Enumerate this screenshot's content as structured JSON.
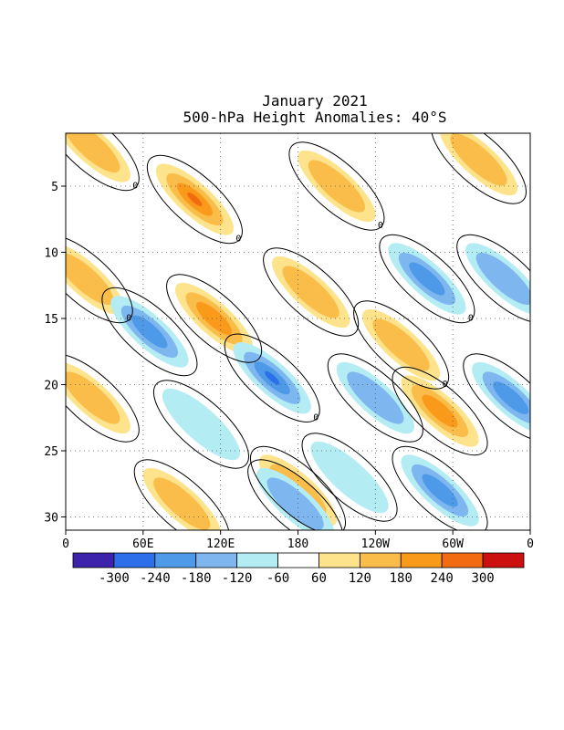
{
  "chart_data": {
    "type": "heatmap",
    "title": "January 2021",
    "subtitle": "500-hPa Height Anomalies: 40°S",
    "x_ticks": [
      "0",
      "60E",
      "120E",
      "180",
      "120W",
      "60W",
      "0"
    ],
    "y_ticks": [
      "5",
      "10",
      "15",
      "20",
      "25",
      "30"
    ],
    "y_range": [
      1,
      31
    ],
    "grid": "dotted",
    "colorbar_labels": [
      "-300",
      "-240",
      "-180",
      "-120",
      "-60",
      "60",
      "120",
      "180",
      "240",
      "300"
    ],
    "colorbar_colors": [
      "#3d22ab",
      "#2d6fe8",
      "#4f9ae8",
      "#7eb7f0",
      "#b4ecf4",
      "#ffffff",
      "#fde38b",
      "#fbbd49",
      "#f99a1a",
      "#f26b10",
      "#cc1010"
    ],
    "contour_label": "0",
    "anomaly_features": [
      {
        "sign": "positive",
        "peak": 240,
        "lon": 100,
        "day": 6
      },
      {
        "sign": "positive",
        "peak": 180,
        "lon": 115,
        "day": 15
      },
      {
        "sign": "positive",
        "peak": 120,
        "lon": 15,
        "day": 12
      },
      {
        "sign": "positive",
        "peak": 120,
        "lon": 190,
        "day": 13
      },
      {
        "sign": "positive",
        "peak": 120,
        "lon": 210,
        "day": 5
      },
      {
        "sign": "positive",
        "peak": 180,
        "lon": 290,
        "day": 22
      },
      {
        "sign": "positive",
        "peak": 120,
        "lon": 260,
        "day": 17
      },
      {
        "sign": "positive",
        "peak": 120,
        "lon": 320,
        "day": 3
      },
      {
        "sign": "positive",
        "peak": 120,
        "lon": 20,
        "day": 2
      },
      {
        "sign": "positive",
        "peak": 120,
        "lon": 180,
        "day": 28
      },
      {
        "sign": "positive",
        "peak": 120,
        "lon": 90,
        "day": 29
      },
      {
        "sign": "positive",
        "peak": 120,
        "lon": 20,
        "day": 21
      },
      {
        "sign": "negative",
        "peak": -240,
        "lon": 160,
        "day": 19.5
      },
      {
        "sign": "negative",
        "peak": -180,
        "lon": 65,
        "day": 16
      },
      {
        "sign": "negative",
        "peak": -180,
        "lon": 280,
        "day": 12
      },
      {
        "sign": "negative",
        "peak": -180,
        "lon": 290,
        "day": 28
      },
      {
        "sign": "negative",
        "peak": -180,
        "lon": 345,
        "day": 21
      },
      {
        "sign": "negative",
        "peak": -120,
        "lon": 240,
        "day": 21
      },
      {
        "sign": "negative",
        "peak": -120,
        "lon": 340,
        "day": 12
      },
      {
        "sign": "negative",
        "peak": -60,
        "lon": 105,
        "day": 23
      },
      {
        "sign": "negative",
        "peak": -120,
        "lon": 178,
        "day": 29
      },
      {
        "sign": "negative",
        "peak": -60,
        "lon": 220,
        "day": 27
      }
    ]
  }
}
